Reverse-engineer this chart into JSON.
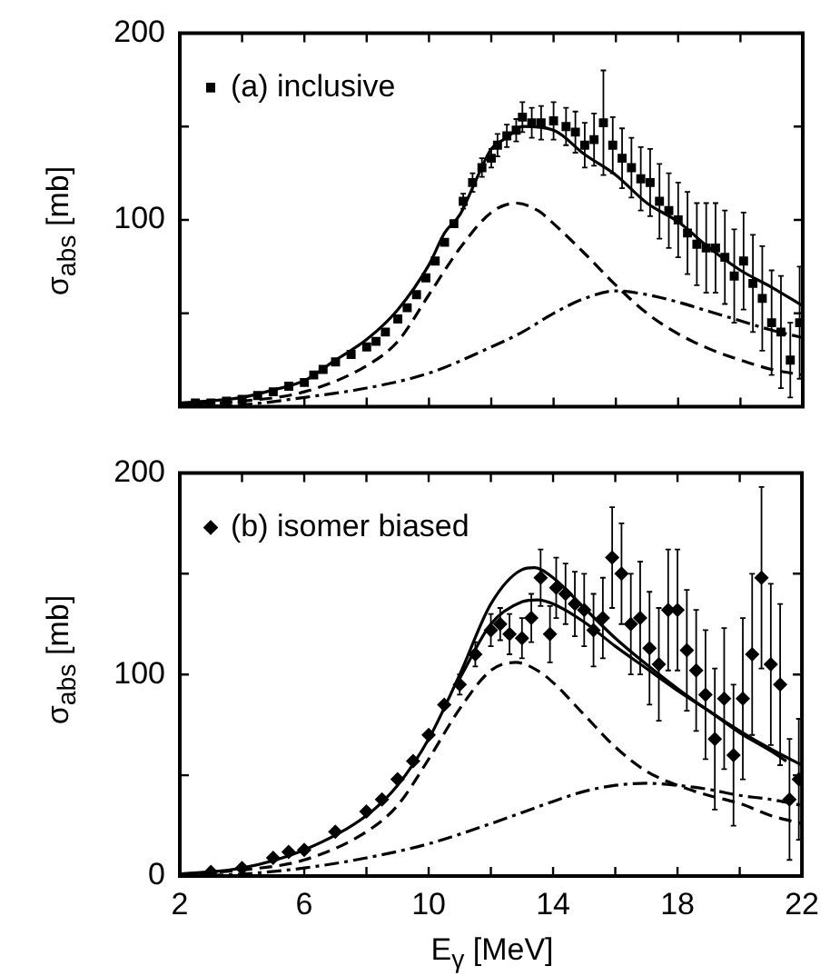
{
  "chart_data": [
    {
      "type": "scatter",
      "ylabel": "σ$_{abs}$ [mb]",
      "xlim": [
        2,
        22
      ],
      "ylim": [
        0,
        200
      ],
      "xticks": [
        2,
        {
          "value": 4,
          "label": null
        },
        6,
        {
          "value": 8,
          "label": null
        },
        10,
        {
          "value": 12,
          "label": null
        },
        14,
        {
          "value": 16,
          "label": null
        },
        18,
        {
          "value": 20,
          "label": null
        },
        22
      ],
      "yticks": [
        {
          "value": 0,
          "label": null
        },
        {
          "value": 50,
          "label": null
        },
        100,
        {
          "value": 150,
          "label": null
        },
        200
      ],
      "tick_labels": "y",
      "grid": false,
      "legend": "top left",
      "series": [
        {
          "name": "(a) inclusive",
          "marker": "square",
          "color": "#000000",
          "x": [
            2.5,
            3,
            3.5,
            4,
            4.5,
            5,
            5.5,
            6,
            6.3,
            6.6,
            7,
            7.5,
            8,
            8.3,
            8.6,
            9,
            9.3,
            9.6,
            9.9,
            10.2,
            10.5,
            10.8,
            11.1,
            11.4,
            11.7,
            12,
            12.2,
            12.5,
            12.8,
            13,
            13.3,
            13.6,
            14,
            14.4,
            14.7,
            15,
            15.3,
            15.6,
            15.9,
            16.2,
            16.5,
            16.8,
            17.1,
            17.4,
            17.7,
            18,
            18.3,
            18.6,
            18.9,
            19.2,
            19.5,
            19.8,
            20.1,
            20.4,
            20.7,
            21,
            21.3,
            21.6,
            21.9
          ],
          "values": [
            2,
            2,
            3,
            4,
            6,
            8,
            11,
            13,
            17,
            20,
            24,
            28,
            32,
            35,
            40,
            47,
            53,
            60,
            69,
            78,
            88,
            98,
            110,
            120,
            128,
            133,
            140,
            145,
            148,
            155,
            152,
            152,
            153,
            150,
            147,
            140,
            143,
            152,
            140,
            133,
            128,
            122,
            120,
            110,
            105,
            100,
            93,
            87,
            85,
            85,
            80,
            70,
            78,
            66,
            58,
            45,
            40,
            25,
            45
          ],
          "errors": [
            null,
            null,
            null,
            null,
            null,
            null,
            null,
            null,
            null,
            null,
            null,
            null,
            null,
            null,
            null,
            null,
            null,
            null,
            null,
            null,
            null,
            null,
            4,
            5,
            5,
            5,
            6,
            6,
            6,
            8,
            8,
            9,
            10,
            10,
            11,
            12,
            14,
            28,
            15,
            16,
            16,
            17,
            18,
            20,
            20,
            20,
            22,
            22,
            24,
            24,
            25,
            25,
            26,
            26,
            28,
            28,
            30,
            20,
            30
          ]
        },
        {
          "type": "line",
          "line_style": "solid",
          "color": "#000000",
          "x": [
            2,
            4,
            5,
            6,
            7,
            8,
            9,
            10,
            10.5,
            11,
            11.5,
            12,
            12.5,
            13,
            14,
            15,
            16,
            17,
            18,
            19,
            20,
            21,
            22
          ],
          "values": [
            2,
            5,
            9,
            14,
            25,
            36,
            52,
            76,
            93,
            103,
            121,
            138,
            144,
            150,
            148,
            135,
            124,
            109,
            99,
            85,
            73,
            64,
            54
          ]
        },
        {
          "type": "line",
          "line_style": "dashed",
          "color": "#000000",
          "x": [
            2,
            4,
            6,
            8,
            9,
            10,
            11,
            12,
            12.8,
            13.5,
            14,
            15,
            16,
            17,
            18,
            19,
            20,
            21,
            22
          ],
          "values": [
            1,
            3,
            8,
            22,
            35,
            60,
            85,
            104,
            109,
            105,
            98,
            82,
            65,
            50,
            39,
            31,
            25,
            20,
            17
          ]
        },
        {
          "type": "line",
          "line_style": "dotted",
          "color": "#000000",
          "x": [
            2,
            4,
            6,
            8,
            10,
            12,
            13,
            14,
            15,
            16,
            17,
            18,
            19,
            20,
            21,
            22
          ],
          "values": [
            0,
            1,
            5,
            10,
            18,
            32,
            40,
            50,
            58,
            62,
            60,
            56,
            51,
            46,
            41,
            37
          ]
        }
      ]
    },
    {
      "type": "scatter",
      "xlabel": "E$_{γ}$ [MeV]",
      "ylabel": "σ$_{abs}$ [mb]",
      "xlim": [
        2,
        22
      ],
      "ylim": [
        0,
        200
      ],
      "xticks": [
        2,
        {
          "value": 4,
          "label": null
        },
        6,
        {
          "value": 8,
          "label": null
        },
        10,
        {
          "value": 12,
          "label": null
        },
        14,
        {
          "value": 16,
          "label": null
        },
        18,
        {
          "value": 20,
          "label": null
        },
        22
      ],
      "yticks": [
        0,
        {
          "value": 50,
          "label": null
        },
        100,
        {
          "value": 150,
          "label": null
        },
        200
      ],
      "grid": false,
      "legend": "top left",
      "series": [
        {
          "name": "(b) isomer biased",
          "marker": "diamond",
          "color": "#000000",
          "x": [
            3,
            4,
            5,
            5.5,
            6,
            7,
            8,
            8.5,
            9,
            9.5,
            10,
            10.5,
            11,
            11.5,
            12,
            12.3,
            12.6,
            13,
            13.3,
            13.6,
            13.9,
            14.1,
            14.4,
            14.7,
            15,
            15.3,
            15.6,
            15.9,
            16.2,
            16.5,
            16.8,
            17.1,
            17.4,
            17.7,
            18,
            18.3,
            18.6,
            18.9,
            19.2,
            19.5,
            19.8,
            20.1,
            20.4,
            20.7,
            21,
            21.3,
            21.6,
            21.9
          ],
          "values": [
            2,
            4,
            9,
            12,
            13,
            22,
            32,
            38,
            48,
            57,
            70,
            85,
            95,
            110,
            122,
            125,
            120,
            118,
            128,
            148,
            120,
            143,
            140,
            135,
            132,
            122,
            128,
            158,
            150,
            125,
            128,
            113,
            105,
            132,
            132,
            112,
            102,
            90,
            68,
            88,
            60,
            88,
            110,
            148,
            105,
            95,
            38,
            48
          ],
          "errors": [
            null,
            null,
            null,
            null,
            null,
            null,
            null,
            null,
            null,
            null,
            null,
            null,
            5,
            6,
            8,
            8,
            10,
            10,
            12,
            14,
            14,
            15,
            15,
            16,
            18,
            18,
            20,
            25,
            25,
            25,
            28,
            28,
            28,
            30,
            30,
            30,
            30,
            32,
            35,
            35,
            35,
            40,
            40,
            45,
            40,
            40,
            30,
            30
          ]
        },
        {
          "type": "line",
          "line_style": "solid",
          "color": "#000000",
          "x": [
            2,
            4,
            6,
            8,
            9,
            10,
            11,
            12,
            13,
            13.4,
            14,
            15,
            16,
            17,
            18,
            19,
            20,
            21,
            22
          ],
          "values": [
            1,
            4,
            13,
            30,
            45,
            68,
            100,
            135,
            152,
            153,
            148,
            133,
            118,
            105,
            93,
            82,
            72,
            63,
            55
          ]
        },
        {
          "type": "line",
          "line_style": "solid",
          "color": "#000000",
          "x": [
            11,
            12,
            13,
            13.5,
            14,
            15,
            16,
            17,
            18,
            19,
            20,
            21,
            21.5
          ],
          "values": [
            98,
            125,
            136,
            137,
            135,
            126,
            114,
            103,
            92,
            82,
            71,
            62,
            57
          ]
        },
        {
          "type": "line",
          "line_style": "dashed",
          "color": "#000000",
          "x": [
            2,
            4,
            6,
            8,
            9,
            10,
            11,
            12,
            12.8,
            13.5,
            14,
            15,
            16,
            17,
            18,
            19,
            20,
            21,
            22
          ],
          "values": [
            1,
            3,
            8,
            22,
            35,
            58,
            83,
            102,
            106,
            102,
            96,
            80,
            64,
            52,
            45,
            40,
            36,
            30,
            26
          ]
        },
        {
          "type": "line",
          "line_style": "dotted",
          "color": "#000000",
          "x": [
            2,
            4,
            6,
            8,
            10,
            12,
            14,
            15,
            16,
            17,
            18,
            19,
            20,
            21,
            22
          ],
          "values": [
            0,
            1,
            4,
            9,
            16,
            26,
            37,
            42,
            45,
            46,
            45,
            43,
            40,
            38,
            35
          ]
        }
      ]
    }
  ]
}
